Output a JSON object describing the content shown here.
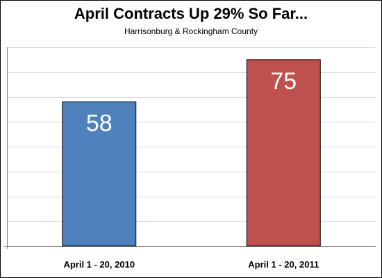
{
  "chart_data": {
    "type": "bar",
    "title": "April Contracts Up 29% So Far...",
    "subtitle": "Harrisonburg & Rockingham County",
    "categories": [
      "April 1 - 20, 2010",
      "April 1 - 20, 2011"
    ],
    "values": [
      58,
      75
    ],
    "bar_colors": [
      "#4f81bd",
      "#c0504d"
    ],
    "ylim": [
      0,
      80
    ],
    "grid": true,
    "legend": "none",
    "data_labels": [
      "58",
      "75"
    ]
  }
}
